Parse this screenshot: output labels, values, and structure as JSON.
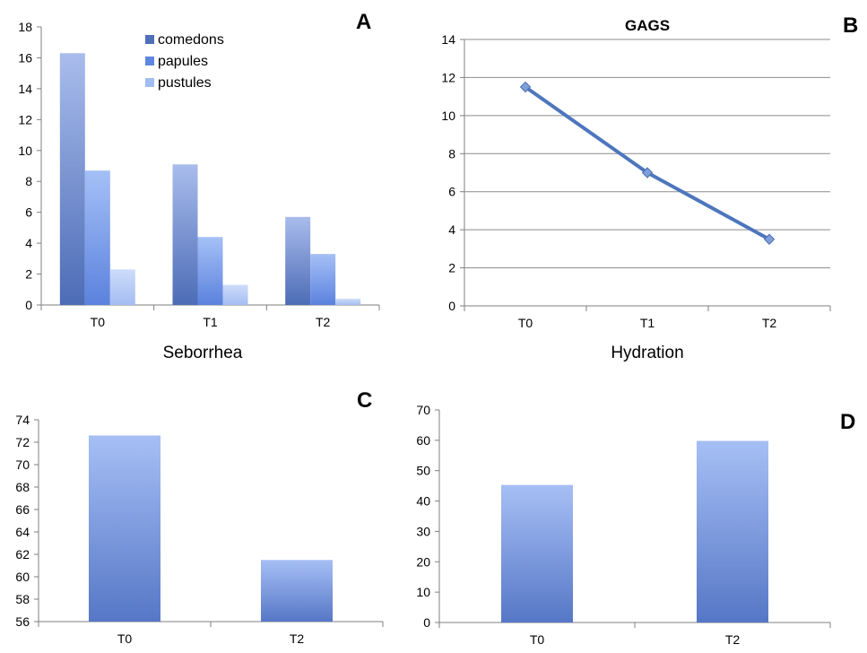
{
  "chart_data": [
    {
      "id": "A",
      "type": "bar",
      "panel_label": "A",
      "title": "",
      "xlabel": "",
      "ylabel": "",
      "categories": [
        "T0",
        "T1",
        "T2"
      ],
      "series": [
        {
          "name": "comedons",
          "values": [
            16.3,
            9.1,
            5.7
          ]
        },
        {
          "name": "papules",
          "values": [
            8.7,
            4.4,
            3.3
          ]
        },
        {
          "name": "pustules",
          "values": [
            2.3,
            1.3,
            0.4
          ]
        }
      ],
      "ylim": [
        0,
        18
      ],
      "yticks": [
        0,
        2,
        4,
        6,
        8,
        10,
        12,
        14,
        16,
        18
      ],
      "grid": false,
      "legend": "top-right",
      "colors": {
        "comedons": "#4f6fb8",
        "papules": "#5f86e0",
        "pustules": "#a3bdf2"
      }
    },
    {
      "id": "B",
      "type": "line",
      "panel_label": "B",
      "title": "GAGS",
      "xlabel": "",
      "ylabel": "",
      "categories": [
        "T0",
        "T1",
        "T2"
      ],
      "series": [
        {
          "values": [
            11.5,
            7.0,
            3.5
          ]
        }
      ],
      "ylim": [
        0,
        14
      ],
      "yticks": [
        0,
        2,
        4,
        6,
        8,
        10,
        12,
        14
      ],
      "grid": true,
      "colors": {
        "line": "#4e76be",
        "marker": "#7f9fd8"
      }
    },
    {
      "id": "C",
      "type": "bar",
      "panel_label": "C",
      "title": "Seborrhea",
      "xlabel": "",
      "ylabel": "",
      "categories": [
        "T0",
        "T2"
      ],
      "series": [
        {
          "values": [
            72.6,
            61.5
          ]
        }
      ],
      "ylim": [
        56,
        74
      ],
      "yticks": [
        56,
        58,
        60,
        62,
        64,
        66,
        68,
        70,
        72,
        74
      ],
      "grid": false,
      "colors": {
        "bar_top": "#a6bff5",
        "bar_bottom": "#5677c6"
      }
    },
    {
      "id": "D",
      "type": "bar",
      "panel_label": "D",
      "title": "Hydration",
      "xlabel": "",
      "ylabel": "",
      "categories": [
        "T0",
        "T2"
      ],
      "series": [
        {
          "values": [
            45.3,
            59.8
          ]
        }
      ],
      "ylim": [
        0,
        70
      ],
      "yticks": [
        0,
        10,
        20,
        30,
        40,
        50,
        60,
        70
      ],
      "grid": false,
      "colors": {
        "bar_top": "#a6bff5",
        "bar_bottom": "#5677c6"
      }
    }
  ]
}
